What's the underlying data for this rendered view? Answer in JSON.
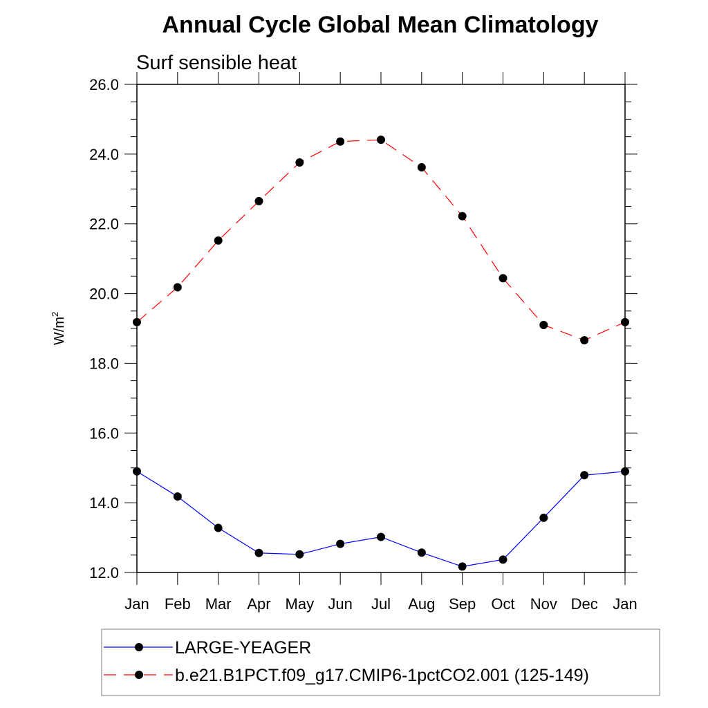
{
  "chart_data": {
    "type": "line",
    "title": "Annual Cycle Global Mean Climatology",
    "subtitle": "Surf sensible heat",
    "xlabel": "",
    "ylabel": "W/m",
    "ylabel_sup": "2",
    "categories": [
      "Jan",
      "Feb",
      "Mar",
      "Apr",
      "May",
      "Jun",
      "Jul",
      "Aug",
      "Sep",
      "Oct",
      "Nov",
      "Dec",
      "Jan"
    ],
    "ylim": [
      12.0,
      26.0
    ],
    "yticks": [
      "12.0",
      "14.0",
      "16.0",
      "18.0",
      "20.0",
      "22.0",
      "24.0",
      "26.0"
    ],
    "grid": false,
    "legend_position": "bottom",
    "series": [
      {
        "name": "LARGE-YEAGER",
        "color": "#0000ff",
        "dash": "solid",
        "values": [
          14.9,
          14.18,
          13.28,
          12.56,
          12.52,
          12.82,
          13.02,
          12.57,
          12.17,
          12.37,
          13.57,
          14.79,
          14.9
        ]
      },
      {
        "name": "b.e21.B1PCT.f09_g17.CMIP6-1pctCO2.001 (125-149)",
        "color": "#ff0000",
        "dash": "dashed",
        "values": [
          19.18,
          20.18,
          21.52,
          22.65,
          23.76,
          24.36,
          24.41,
          23.62,
          22.22,
          20.44,
          19.1,
          18.66,
          19.18
        ]
      }
    ]
  }
}
